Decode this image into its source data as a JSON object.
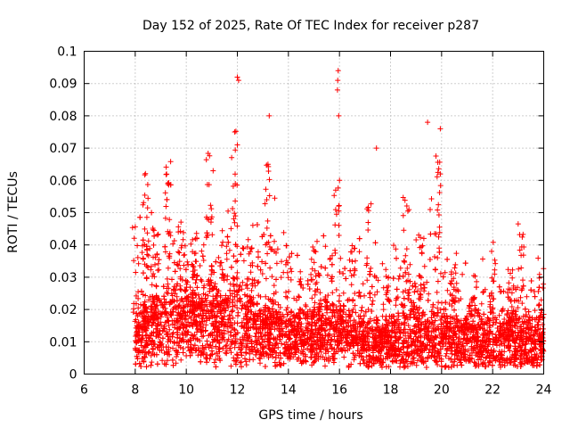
{
  "chart_data": {
    "type": "scatter",
    "title": "Day 152 of 2025, Rate Of TEC Index for receiver p287",
    "xlabel": "GPS time / hours",
    "ylabel": "ROTI / TECUs",
    "xlim": [
      6,
      24
    ],
    "ylim": [
      0,
      0.1
    ],
    "xticks": [
      "6",
      "8",
      "10",
      "12",
      "14",
      "16",
      "18",
      "20",
      "22",
      "24"
    ],
    "yticks": [
      "0",
      "0.01",
      "0.02",
      "0.03",
      "0.04",
      "0.05",
      "0.06",
      "0.07",
      "0.08",
      "0.09",
      "0.1"
    ],
    "grid": true,
    "marker": "+",
    "color": "#ff0000",
    "series": [
      {
        "name": "ROTI",
        "description_points": "dense cloud of points from 8 h to 24 h",
        "envelope": [
          {
            "x": 8.0,
            "base": 0.01,
            "spread": 0.01,
            "peak": 0.046
          },
          {
            "x": 8.4,
            "base": 0.013,
            "spread": 0.015,
            "peak": 0.068
          },
          {
            "x": 8.8,
            "base": 0.014,
            "spread": 0.014,
            "peak": 0.046
          },
          {
            "x": 9.3,
            "base": 0.015,
            "spread": 0.018,
            "peak": 0.066
          },
          {
            "x": 9.8,
            "base": 0.016,
            "spread": 0.016,
            "peak": 0.05
          },
          {
            "x": 10.3,
            "base": 0.016,
            "spread": 0.016,
            "peak": 0.046
          },
          {
            "x": 10.9,
            "base": 0.016,
            "spread": 0.018,
            "peak": 0.07
          },
          {
            "x": 11.5,
            "base": 0.015,
            "spread": 0.016,
            "peak": 0.05
          },
          {
            "x": 11.9,
            "base": 0.015,
            "spread": 0.02,
            "peak": 0.076
          },
          {
            "x": 12.5,
            "base": 0.014,
            "spread": 0.014,
            "peak": 0.042
          },
          {
            "x": 13.2,
            "base": 0.013,
            "spread": 0.014,
            "peak": 0.072
          },
          {
            "x": 14.0,
            "base": 0.011,
            "spread": 0.01,
            "peak": 0.04
          },
          {
            "x": 15.0,
            "base": 0.012,
            "spread": 0.012,
            "peak": 0.043
          },
          {
            "x": 15.9,
            "base": 0.014,
            "spread": 0.016,
            "peak": 0.058
          },
          {
            "x": 16.5,
            "base": 0.012,
            "spread": 0.012,
            "peak": 0.04
          },
          {
            "x": 17.2,
            "base": 0.009,
            "spread": 0.01,
            "peak": 0.056
          },
          {
            "x": 17.8,
            "base": 0.009,
            "spread": 0.01,
            "peak": 0.035
          },
          {
            "x": 18.6,
            "base": 0.012,
            "spread": 0.018,
            "peak": 0.058
          },
          {
            "x": 19.2,
            "base": 0.011,
            "spread": 0.012,
            "peak": 0.045
          },
          {
            "x": 19.9,
            "base": 0.011,
            "spread": 0.014,
            "peak": 0.068
          },
          {
            "x": 20.5,
            "base": 0.01,
            "spread": 0.011,
            "peak": 0.038
          },
          {
            "x": 21.3,
            "base": 0.01,
            "spread": 0.011,
            "peak": 0.032
          },
          {
            "x": 22.0,
            "base": 0.01,
            "spread": 0.012,
            "peak": 0.041
          },
          {
            "x": 22.7,
            "base": 0.01,
            "spread": 0.011,
            "peak": 0.034
          },
          {
            "x": 23.1,
            "base": 0.01,
            "spread": 0.012,
            "peak": 0.049
          },
          {
            "x": 23.9,
            "base": 0.009,
            "spread": 0.012,
            "peak": 0.036
          }
        ],
        "outliers": [
          {
            "x": 12.0,
            "y": 0.092
          },
          {
            "x": 12.05,
            "y": 0.091
          },
          {
            "x": 15.95,
            "y": 0.094
          },
          {
            "x": 15.93,
            "y": 0.091
          },
          {
            "x": 15.92,
            "y": 0.088
          },
          {
            "x": 15.97,
            "y": 0.08
          },
          {
            "x": 13.25,
            "y": 0.08
          },
          {
            "x": 19.45,
            "y": 0.078
          },
          {
            "x": 19.95,
            "y": 0.076
          },
          {
            "x": 11.9,
            "y": 0.075
          },
          {
            "x": 12.0,
            "y": 0.071
          },
          {
            "x": 17.45,
            "y": 0.07
          },
          {
            "x": 13.2,
            "y": 0.065
          },
          {
            "x": 19.95,
            "y": 0.062
          },
          {
            "x": 15.85,
            "y": 0.057
          },
          {
            "x": 16.0,
            "y": 0.06
          },
          {
            "x": 13.15,
            "y": 0.054
          }
        ]
      }
    ]
  }
}
